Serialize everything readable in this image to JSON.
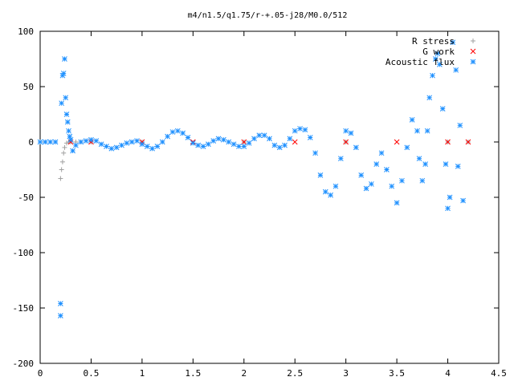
{
  "chart_data": {
    "type": "scatter",
    "title": "m4/n1.5/q1.75/r-+.05-j28/M0.0/512",
    "xlabel": "",
    "ylabel": "",
    "xlim": [
      0,
      4.5
    ],
    "ylim": [
      -200,
      100
    ],
    "x_ticks": [
      "0",
      "0.5",
      "1",
      "1.5",
      "2",
      "2.5",
      "3",
      "3.5",
      "4",
      "4.5"
    ],
    "y_ticks": [
      "100",
      "50",
      "0",
      "-50",
      "-100",
      "-150",
      "-200"
    ],
    "grid": false,
    "legend_position": "top-right",
    "series": [
      {
        "name": "R stress",
        "marker": "+",
        "color": "#a0a0a0",
        "x": [
          0.2,
          0.21,
          0.22,
          0.23,
          0.24,
          0.26,
          0.28,
          0.3,
          0.35,
          0.4,
          0.5,
          1.0,
          2.0,
          3.0,
          4.0,
          4.2
        ],
        "y": [
          -33,
          -25,
          -18,
          -10,
          -5,
          -1,
          0,
          0,
          0,
          0,
          0,
          0,
          0,
          0,
          0,
          0
        ]
      },
      {
        "name": "G work",
        "marker": "x",
        "color": "#ff0000",
        "x": [
          0.3,
          0.5,
          1.0,
          1.5,
          2.0,
          2.5,
          3.0,
          3.5,
          4.0,
          4.2
        ],
        "y": [
          0,
          0,
          0,
          0,
          0,
          0,
          0,
          0,
          0,
          0
        ]
      },
      {
        "name": "Acoustic flux",
        "marker": "*",
        "color": "#1e90ff",
        "x": [
          0.0,
          0.05,
          0.1,
          0.15,
          0.2,
          0.2,
          0.21,
          0.22,
          0.23,
          0.24,
          0.25,
          0.26,
          0.27,
          0.28,
          0.29,
          0.3,
          0.32,
          0.35,
          0.4,
          0.45,
          0.5,
          0.55,
          0.6,
          0.65,
          0.7,
          0.75,
          0.8,
          0.85,
          0.9,
          0.95,
          1.0,
          1.05,
          1.1,
          1.15,
          1.2,
          1.25,
          1.3,
          1.35,
          1.4,
          1.45,
          1.5,
          1.55,
          1.6,
          1.65,
          1.7,
          1.75,
          1.8,
          1.85,
          1.9,
          1.95,
          2.0,
          2.05,
          2.1,
          2.15,
          2.2,
          2.25,
          2.3,
          2.35,
          2.4,
          2.45,
          2.5,
          2.55,
          2.6,
          2.65,
          2.7,
          2.75,
          2.8,
          2.85,
          2.9,
          2.95,
          3.0,
          3.05,
          3.1,
          3.15,
          3.2,
          3.25,
          3.3,
          3.35,
          3.4,
          3.45,
          3.5,
          3.55,
          3.6,
          3.65,
          3.7,
          3.72,
          3.75,
          3.78,
          3.8,
          3.82,
          3.85,
          3.88,
          3.9,
          3.92,
          3.95,
          3.98,
          4.0,
          4.02,
          4.05,
          4.08,
          4.1,
          4.12,
          4.15
        ],
        "y": [
          0,
          0,
          0,
          0,
          -157,
          -146,
          35,
          60,
          62,
          75,
          40,
          25,
          18,
          10,
          5,
          2,
          -8,
          -3,
          0,
          1,
          2,
          1,
          -2,
          -4,
          -6,
          -5,
          -3,
          -1,
          0,
          1,
          -2,
          -4,
          -6,
          -4,
          0,
          5,
          9,
          10,
          8,
          4,
          -1,
          -3,
          -4,
          -2,
          1,
          3,
          2,
          0,
          -2,
          -4,
          -4,
          -1,
          3,
          6,
          6,
          3,
          -3,
          -5,
          -3,
          3,
          10,
          12,
          11,
          4,
          -10,
          -30,
          -45,
          -48,
          -40,
          -15,
          10,
          8,
          -5,
          -30,
          -42,
          -38,
          -20,
          -10,
          -25,
          -40,
          -55,
          -35,
          -5,
          20,
          10,
          -15,
          -35,
          -20,
          10,
          40,
          60,
          75,
          80,
          70,
          30,
          -20,
          -60,
          -50,
          90,
          65,
          -22,
          15,
          -53
        ]
      }
    ]
  }
}
